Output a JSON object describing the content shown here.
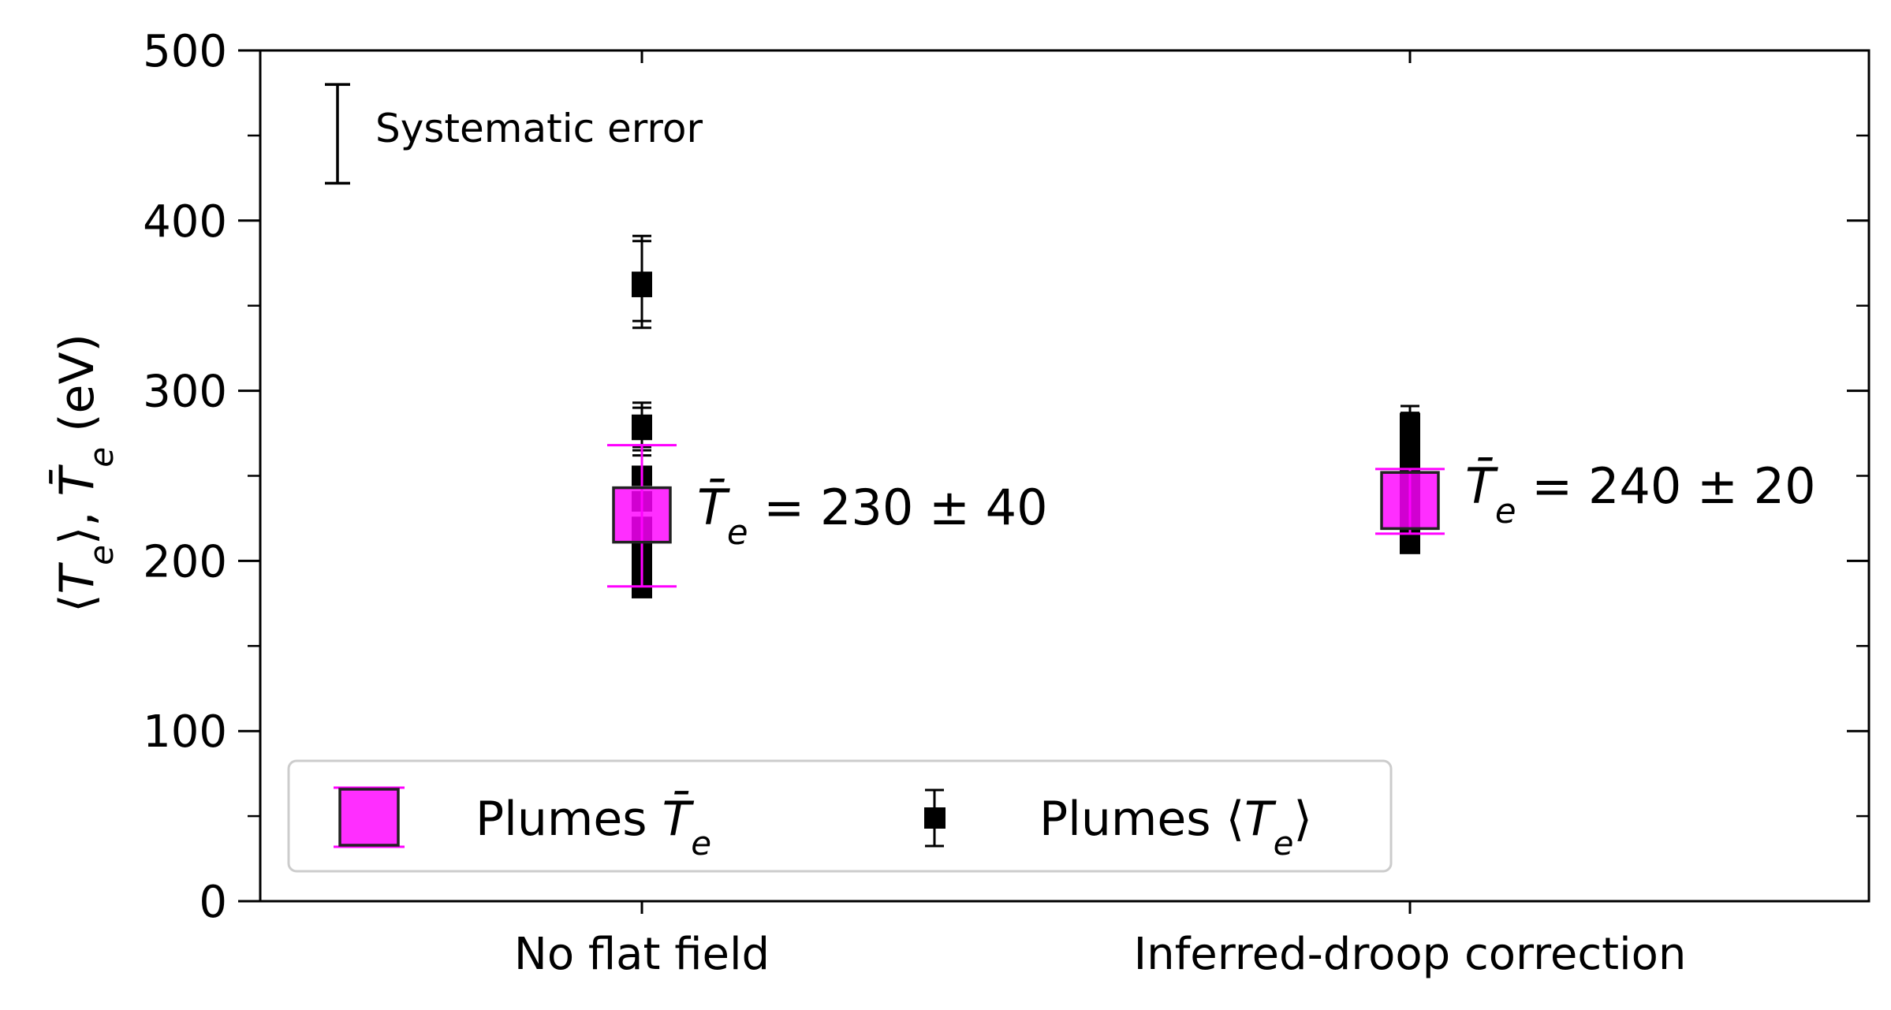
{
  "chart_data": {
    "type": "scatter",
    "ylabel": "⟨T_e⟩, T̄_e (eV)",
    "ylim": [
      0,
      500
    ],
    "yticks": [
      0,
      100,
      200,
      300,
      400,
      500
    ],
    "categories": [
      "No flat field",
      "Inferred-droop correction"
    ],
    "series": [
      {
        "name": "Plumes T̄_e",
        "marker": "square-large",
        "color": "#ff00ff",
        "points": [
          {
            "category": "No flat field",
            "y": 227,
            "yerr_low": 185,
            "yerr_high": 268,
            "box_low": 211,
            "box_high": 243
          },
          {
            "category": "Inferred-droop correction",
            "y": 235,
            "yerr_low": 216,
            "yerr_high": 254,
            "box_low": 219,
            "box_high": 252
          }
        ]
      },
      {
        "name": "Plumes ⟨T_e⟩",
        "marker": "square-small",
        "color": "#000000",
        "points": [
          {
            "category": "No flat field",
            "y": 364,
            "yerr_low": 337,
            "yerr_high": 391
          },
          {
            "category": "No flat field",
            "y": 361,
            "yerr_low": 341,
            "yerr_high": 388
          },
          {
            "category": "No flat field",
            "y": 280,
            "yerr_low": 267,
            "yerr_high": 293
          },
          {
            "category": "No flat field",
            "y": 277,
            "yerr_low": 262,
            "yerr_high": 290
          },
          {
            "category": "No flat field",
            "y": 250,
            "yerr_low": 235,
            "yerr_high": 265
          },
          {
            "category": "No flat field",
            "y": 235,
            "yerr_low": 220,
            "yerr_high": 250
          },
          {
            "category": "No flat field",
            "y": 220,
            "yerr_low": 205,
            "yerr_high": 235
          },
          {
            "category": "No flat field",
            "y": 210,
            "yerr_low": 195,
            "yerr_high": 225
          },
          {
            "category": "No flat field",
            "y": 200,
            "yerr_low": 187,
            "yerr_high": 213
          },
          {
            "category": "No flat field",
            "y": 190,
            "yerr_low": 180,
            "yerr_high": 202
          },
          {
            "category": "No flat field",
            "y": 184,
            "yerr_low": 179,
            "yerr_high": 192
          },
          {
            "category": "Inferred-droop correction",
            "y": 281,
            "yerr_low": 268,
            "yerr_high": 291
          },
          {
            "category": "Inferred-droop correction",
            "y": 275,
            "yerr_low": 262,
            "yerr_high": 287
          },
          {
            "category": "Inferred-droop correction",
            "y": 265,
            "yerr_low": 253,
            "yerr_high": 277
          },
          {
            "category": "Inferred-droop correction",
            "y": 255,
            "yerr_low": 243,
            "yerr_high": 267
          },
          {
            "category": "Inferred-droop correction",
            "y": 245,
            "yerr_low": 233,
            "yerr_high": 257
          },
          {
            "category": "Inferred-droop correction",
            "y": 235,
            "yerr_low": 223,
            "yerr_high": 247
          },
          {
            "category": "Inferred-droop correction",
            "y": 225,
            "yerr_low": 213,
            "yerr_high": 237
          },
          {
            "category": "Inferred-droop correction",
            "y": 215,
            "yerr_low": 206,
            "yerr_high": 226
          },
          {
            "category": "Inferred-droop correction",
            "y": 210,
            "yerr_low": 205,
            "yerr_high": 219
          }
        ]
      }
    ],
    "annotations": [
      {
        "category": "No flat field",
        "text_symbol": "T̄",
        "text_sub": "e",
        "text_rest": " = 230 ± 40"
      },
      {
        "category": "Inferred-droop correction",
        "text_symbol": "T̄",
        "text_sub": "e",
        "text_rest": " = 240 ± 20"
      }
    ],
    "systematic_error": {
      "label": "Systematic error",
      "y_low": 422,
      "y_high": 480
    },
    "legend": {
      "placement": "lower-left",
      "entries": [
        {
          "label_text": "Plumes ",
          "label_symbol": "T̄",
          "label_sub": "e",
          "label_after": ""
        },
        {
          "label_text": "Plumes ⟨",
          "label_symbol": "T",
          "label_sub": "e",
          "label_after": "⟩"
        }
      ]
    },
    "grid": false
  }
}
